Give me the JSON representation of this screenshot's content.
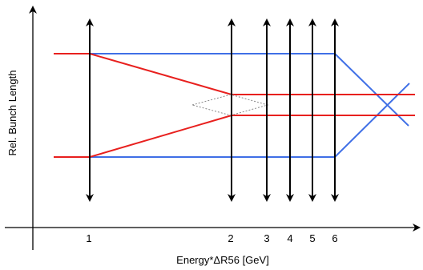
{
  "axes": {
    "x_label": "Energy*ΔR56 [GeV]",
    "y_label": "Rel. Bunch Length"
  },
  "ticks": [
    "1",
    "2",
    "3",
    "4",
    "5",
    "6"
  ],
  "colors": {
    "axis": "#000000",
    "red_line": "#e8201e",
    "blue_line": "#3f6fe6",
    "marker_arrow": "#000000",
    "dotted_diamond": "#888888"
  }
}
